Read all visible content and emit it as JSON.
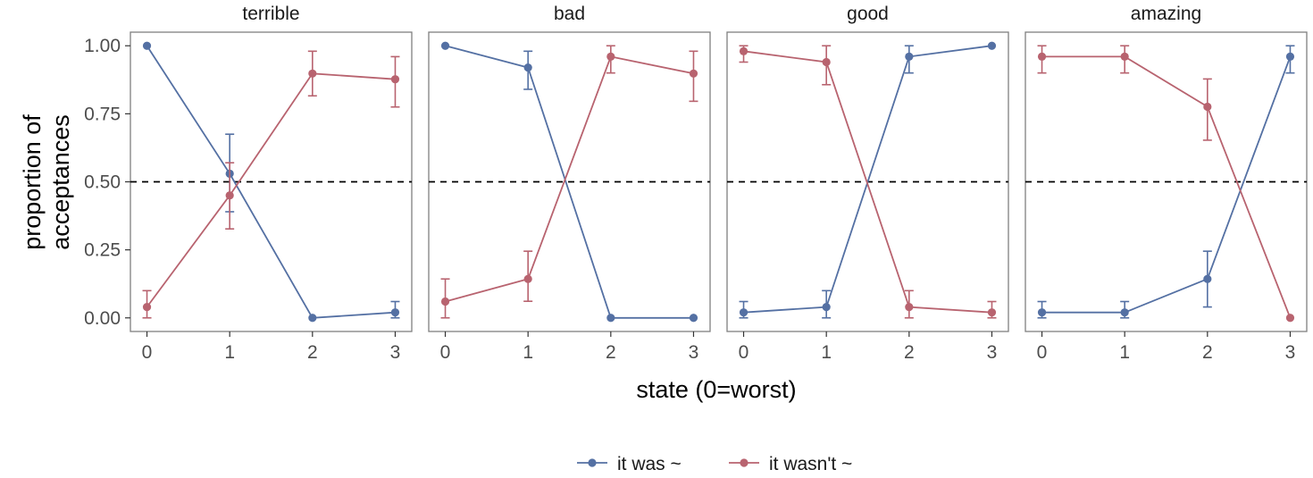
{
  "chart_data": {
    "type": "line",
    "facets": [
      "terrible",
      "bad",
      "good",
      "amazing"
    ],
    "x": [
      0,
      1,
      2,
      3
    ],
    "x_ticks": [
      "0",
      "1",
      "2",
      "3"
    ],
    "y_ticks": [
      "0.00",
      "0.25",
      "0.50",
      "0.75",
      "1.00"
    ],
    "y_tick_values": [
      0,
      0.25,
      0.5,
      0.75,
      1.0
    ],
    "xlim": [
      -0.2,
      3.2
    ],
    "ylim": [
      -0.05,
      1.05
    ],
    "xlabel": "state (0=worst)",
    "ylabel": "proportion of acceptances",
    "ylabel_lines": [
      "proportion of",
      "acceptances"
    ],
    "reference_line": {
      "y": 0.5,
      "style": "dashed",
      "color": "#000000"
    },
    "legend_position": "bottom",
    "series": [
      {
        "name": "it was ~",
        "color": "#5470a3",
        "panels": {
          "terrible": {
            "values": [
              1.0,
              0.53,
              0.0,
              0.02
            ],
            "lower": [
              null,
              0.39,
              null,
              0.0
            ],
            "upper": [
              null,
              0.675,
              null,
              0.06
            ]
          },
          "bad": {
            "values": [
              1.0,
              0.92,
              0.0,
              0.0
            ],
            "lower": [
              null,
              0.84,
              null,
              null
            ],
            "upper": [
              null,
              0.98,
              null,
              null
            ]
          },
          "good": {
            "values": [
              0.02,
              0.04,
              0.96,
              1.0
            ],
            "lower": [
              0.0,
              0.0,
              0.9,
              null
            ],
            "upper": [
              0.06,
              0.1,
              1.0,
              null
            ]
          },
          "amazing": {
            "values": [
              0.02,
              0.02,
              0.143,
              0.96
            ],
            "lower": [
              0.0,
              0.0,
              0.04,
              0.9
            ],
            "upper": [
              0.06,
              0.06,
              0.245,
              1.0
            ]
          }
        }
      },
      {
        "name": "it wasn't ~",
        "color": "#b8636f",
        "panels": {
          "terrible": {
            "values": [
              0.04,
              0.45,
              0.898,
              0.877
            ],
            "lower": [
              0.0,
              0.327,
              0.816,
              0.775
            ],
            "upper": [
              0.1,
              0.57,
              0.98,
              0.96
            ]
          },
          "bad": {
            "values": [
              0.06,
              0.143,
              0.96,
              0.898
            ],
            "lower": [
              0.0,
              0.061,
              0.9,
              0.796
            ],
            "upper": [
              0.143,
              0.245,
              1.0,
              0.98
            ]
          },
          "good": {
            "values": [
              0.98,
              0.94,
              0.04,
              0.02
            ],
            "lower": [
              0.94,
              0.857,
              0.0,
              0.0
            ],
            "upper": [
              1.0,
              1.0,
              0.1,
              0.06
            ]
          },
          "amazing": {
            "values": [
              0.96,
              0.96,
              0.776,
              0.0
            ],
            "lower": [
              0.9,
              0.9,
              0.653,
              null
            ],
            "upper": [
              1.0,
              1.0,
              0.878,
              null
            ]
          }
        }
      }
    ]
  }
}
